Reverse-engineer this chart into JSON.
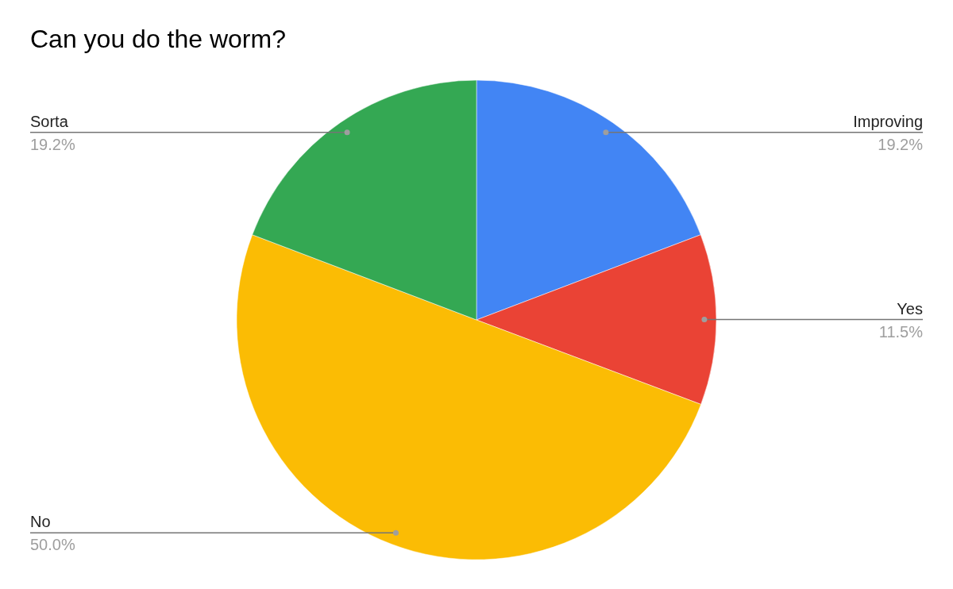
{
  "chart_data": {
    "type": "pie",
    "title": "Can you do the worm?",
    "categories": [
      "Improving",
      "Yes",
      "No",
      "Sorta"
    ],
    "values": [
      19.2,
      11.5,
      50.0,
      19.2
    ],
    "value_labels": [
      "19.2%",
      "11.5%",
      "50.0%",
      "19.2%"
    ],
    "colors": [
      "#4285f4",
      "#ea4335",
      "#fbbc04",
      "#34a853"
    ],
    "legend": false
  }
}
